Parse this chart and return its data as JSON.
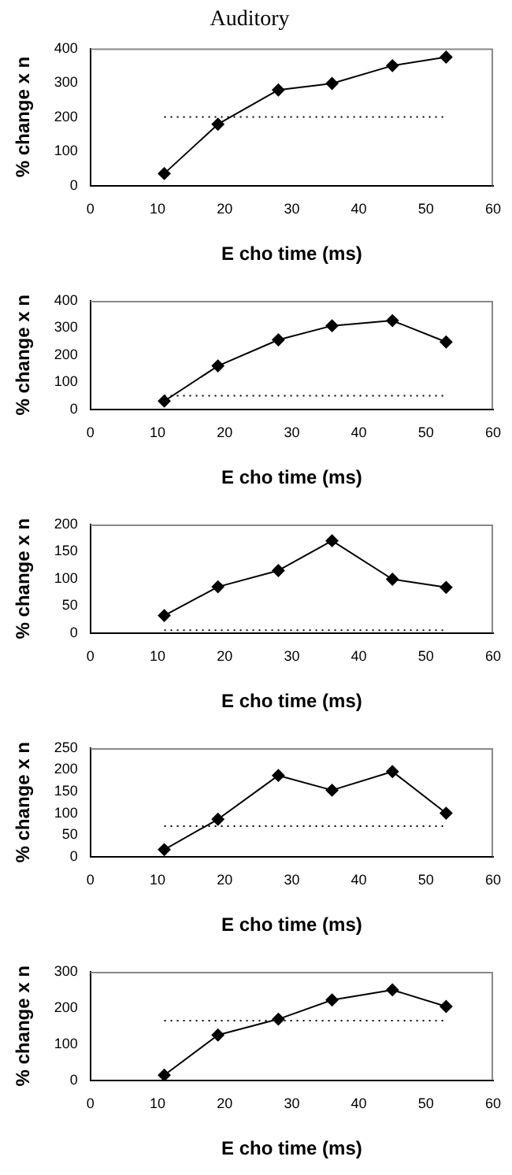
{
  "chart_data": [
    {
      "type": "line",
      "title": "Auditory",
      "xlabel": "E cho time (ms)",
      "ylabel": "% change x n",
      "xlim": [
        0,
        60
      ],
      "xticks": [
        0,
        10,
        20,
        30,
        40,
        50,
        60
      ],
      "ylim": [
        0,
        400
      ],
      "yticks": [
        0,
        100,
        200,
        300,
        400
      ],
      "grid": false,
      "legend": false,
      "marker": "diamond",
      "series": [
        {
          "color": "#000000",
          "x": [
            11,
            19,
            28,
            36,
            45,
            53
          ],
          "values": [
            35,
            179,
            279,
            298,
            350,
            375
          ]
        },
        {
          "color": "#000000",
          "x": [
            11,
            53
          ],
          "values": [
            200,
            200
          ],
          "line_style": "dotted",
          "marker": "none"
        }
      ]
    },
    {
      "type": "line",
      "xlabel": "E cho time (ms)",
      "ylabel": "% change x n",
      "xlim": [
        0,
        60
      ],
      "xticks": [
        0,
        10,
        20,
        30,
        40,
        50,
        60
      ],
      "ylim": [
        0,
        400
      ],
      "yticks": [
        0,
        100,
        200,
        300,
        400
      ],
      "grid": false,
      "legend": false,
      "marker": "diamond",
      "series": [
        {
          "color": "#000000",
          "x": [
            11,
            19,
            28,
            36,
            45,
            53
          ],
          "values": [
            30,
            160,
            256,
            308,
            327,
            248
          ]
        },
        {
          "color": "#000000",
          "x": [
            11,
            53
          ],
          "values": [
            50,
            50
          ],
          "line_style": "dotted",
          "marker": "none"
        }
      ]
    },
    {
      "type": "line",
      "xlabel": "E cho time (ms)",
      "ylabel": "% change x n",
      "xlim": [
        0,
        60
      ],
      "xticks": [
        0,
        10,
        20,
        30,
        40,
        50,
        60
      ],
      "ylim": [
        0,
        200
      ],
      "yticks": [
        0,
        50,
        100,
        150,
        200
      ],
      "grid": false,
      "legend": false,
      "marker": "diamond",
      "series": [
        {
          "color": "#000000",
          "x": [
            11,
            19,
            28,
            36,
            45,
            53
          ],
          "values": [
            32,
            85,
            115,
            170,
            99,
            84
          ]
        },
        {
          "color": "#000000",
          "x": [
            11,
            53
          ],
          "values": [
            5,
            5
          ],
          "line_style": "dotted",
          "marker": "none"
        }
      ]
    },
    {
      "type": "line",
      "xlabel": "E cho time (ms)",
      "ylabel": "% change x n",
      "xlim": [
        0,
        60
      ],
      "xticks": [
        0,
        10,
        20,
        30,
        40,
        50,
        60
      ],
      "ylim": [
        0,
        250
      ],
      "yticks": [
        0,
        50,
        100,
        150,
        200,
        250
      ],
      "grid": false,
      "legend": false,
      "marker": "diamond",
      "series": [
        {
          "color": "#000000",
          "x": [
            11,
            19,
            28,
            36,
            45,
            53
          ],
          "values": [
            16,
            86,
            187,
            153,
            196,
            100
          ]
        },
        {
          "color": "#000000",
          "x": [
            11,
            53
          ],
          "values": [
            70,
            70
          ],
          "line_style": "dotted",
          "marker": "none"
        }
      ]
    },
    {
      "type": "line",
      "xlabel": "E cho time (ms)",
      "ylabel": "% change x n",
      "xlim": [
        0,
        60
      ],
      "xticks": [
        0,
        10,
        20,
        30,
        40,
        50,
        60
      ],
      "ylim": [
        0,
        300
      ],
      "yticks": [
        0,
        100,
        200,
        300
      ],
      "grid": false,
      "legend": false,
      "marker": "diamond",
      "series": [
        {
          "color": "#000000",
          "x": [
            11,
            19,
            28,
            36,
            45,
            53
          ],
          "values": [
            14,
            125,
            169,
            222,
            250,
            204
          ]
        },
        {
          "color": "#000000",
          "x": [
            11,
            53
          ],
          "values": [
            165,
            165
          ],
          "line_style": "dotted",
          "marker": "none"
        }
      ]
    }
  ]
}
